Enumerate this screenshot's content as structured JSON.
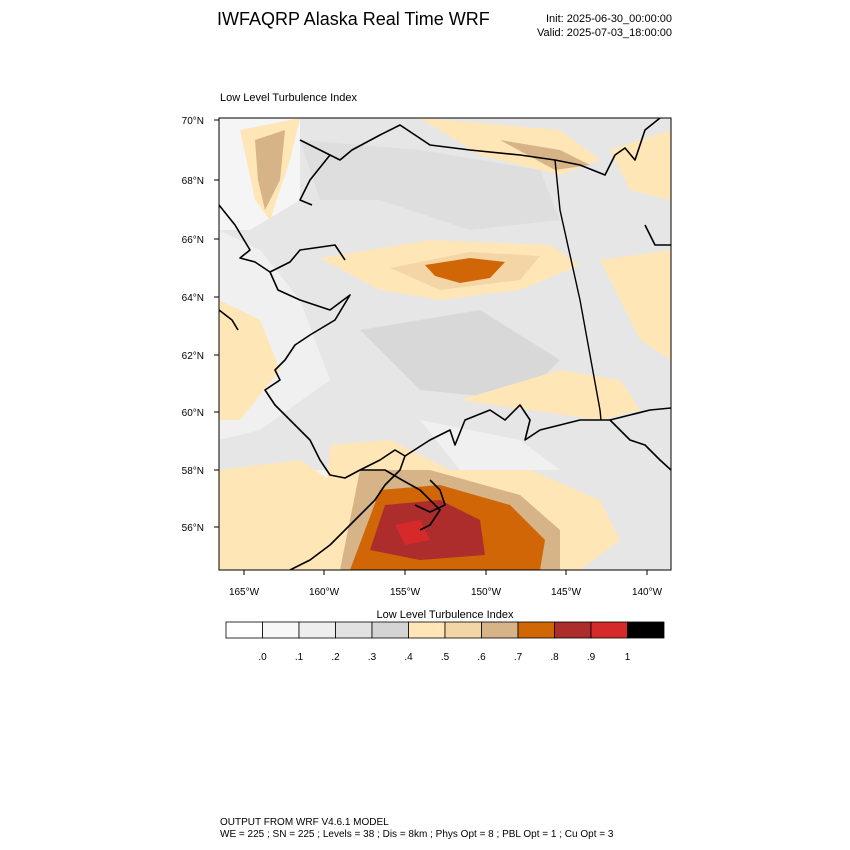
{
  "header": {
    "title": "IWFAQRP Alaska Real Time WRF",
    "init": "Init: 2025-06-30_00:00:00",
    "valid": "Valid: 2025-07-03_18:00:00"
  },
  "map": {
    "field_label": "Low Level Turbulence Index",
    "lat_labels": [
      "70°N",
      "68°N",
      "66°N",
      "64°N",
      "62°N",
      "60°N",
      "58°N",
      "56°N"
    ],
    "lon_labels": [
      "165°W",
      "160°W",
      "155°W",
      "150°W",
      "145°W",
      "140°W"
    ],
    "background_color": "#e6e6e6",
    "coast_color": "#000000"
  },
  "colorbar": {
    "title": "Low Level Turbulence Index",
    "tick_labels": [
      ".0",
      ".1",
      ".2",
      ".3",
      ".4",
      ".5",
      ".6",
      ".7",
      ".8",
      ".9",
      "1"
    ],
    "colors": [
      "#ffffff",
      "#f7f7f7",
      "#eeeeee",
      "#e2e2e2",
      "#d4d4d4",
      "#ffe6b6",
      "#f4d6a6",
      "#d6b488",
      "#d16606",
      "#ad2c2c",
      "#d62a2a",
      "#000000"
    ]
  },
  "footer": {
    "line1": "OUTPUT FROM WRF V4.6.1 MODEL",
    "line2": "WE = 225 ; SN = 225 ; Levels = 38 ; Dis = 8km ; Phys Opt = 8 ; PBL Opt = 1 ; Cu Opt = 3"
  }
}
